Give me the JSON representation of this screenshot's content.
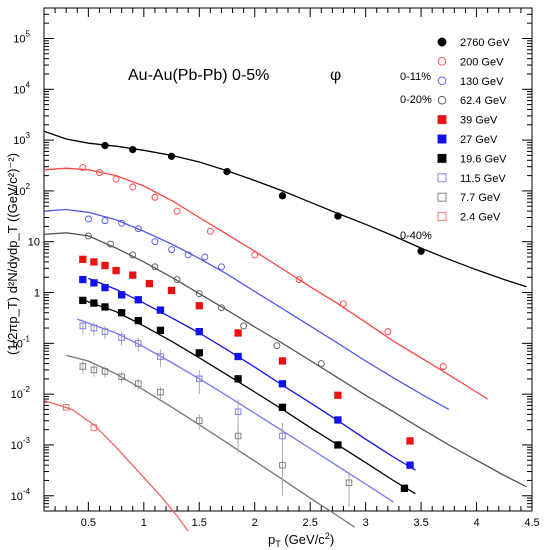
{
  "chart_data": {
    "type": "scatter",
    "title": "Au-Au(Pb-Pb)  0-5%",
    "particle_symbol": "φ",
    "xlabel": "p",
    "xlabel_sub": "T",
    "xlabel_units": " (GeV/c",
    "xlabel_sup": "2",
    "xlabel_close": ")",
    "ylabel": "(1/2πp_T) d²N/dydp_T ((GeV/c²)⁻²)",
    "xlim": [
      0.1,
      4.5
    ],
    "ylim_log10": [
      -4.3,
      5.6
    ],
    "yscale": "log",
    "x_ticks": [
      0.5,
      1,
      1.5,
      2,
      2.5,
      3,
      3.5,
      4,
      4.5
    ],
    "x_tick_labels": [
      "0.5",
      "1",
      "1.5",
      "2",
      "2.5",
      "3",
      "3.5",
      "4",
      "4.5"
    ],
    "y_tick_exponents": [
      -4,
      -3,
      -2,
      -1,
      0,
      1,
      2,
      3,
      4,
      5
    ],
    "y_tick_labels": [
      {
        "base": "10",
        "exp": "-4"
      },
      {
        "base": "10",
        "exp": "-3"
      },
      {
        "base": "10",
        "exp": "-2"
      },
      {
        "base": "10",
        "exp": "-1"
      },
      {
        "base": "1",
        "exp": ""
      },
      {
        "base": "10",
        "exp": ""
      },
      {
        "base": "10",
        "exp": "2"
      },
      {
        "base": "10",
        "exp": "3"
      },
      {
        "base": "10",
        "exp": "4"
      },
      {
        "base": "10",
        "exp": "5"
      }
    ],
    "centrality_notes": [
      {
        "text": "0-11%",
        "series": "130 GeV"
      },
      {
        "text": "0-20%",
        "series": "62.4 GeV"
      },
      {
        "text": "0-40%",
        "series": "2.4 GeV"
      }
    ],
    "series": [
      {
        "name": "2760 GeV",
        "color": "#000000",
        "marker": "circle",
        "filled": true,
        "x": [
          0.65,
          0.9,
          1.25,
          1.75,
          2.25,
          2.75,
          3.5
        ],
        "y": [
          780,
          650,
          480,
          240,
          80,
          32,
          6.5
        ],
        "err": [],
        "curve": {
          "x": [
            0.1,
            0.3,
            0.5,
            0.75,
            1.0,
            1.25,
            1.5,
            1.75,
            2.0,
            2.25,
            2.5,
            2.75,
            3.0,
            3.25,
            3.5,
            3.75,
            4.0,
            4.25,
            4.45
          ],
          "y": [
            1500,
            1050,
            870,
            760,
            630,
            500,
            370,
            250,
            160,
            100,
            60,
            36,
            22,
            13,
            7.5,
            4.5,
            2.8,
            1.8,
            1.3
          ]
        }
      },
      {
        "name": "200 GeV",
        "color": "#ff4444",
        "marker": "circle",
        "filled": false,
        "x": [
          0.45,
          0.6,
          0.75,
          0.9,
          1.1,
          1.3,
          1.6,
          2.0,
          2.4,
          2.8,
          3.2,
          3.7
        ],
        "y": [
          290,
          230,
          170,
          120,
          75,
          40,
          16,
          5.5,
          1.8,
          0.6,
          0.17,
          0.035
        ],
        "err": [],
        "curve": {
          "x": [
            0.1,
            0.3,
            0.5,
            0.75,
            1.0,
            1.25,
            1.5,
            1.75,
            2.0,
            2.25,
            2.5,
            2.75,
            3.0,
            3.25,
            3.5,
            3.75,
            4.0,
            4.1
          ],
          "y": [
            260,
            280,
            260,
            200,
            125,
            65,
            30,
            14,
            6.5,
            2.9,
            1.3,
            0.6,
            0.26,
            0.11,
            0.052,
            0.024,
            0.011,
            0.008
          ]
        }
      },
      {
        "name": "130 GeV",
        "color": "#5555ee",
        "marker": "circle",
        "filled": false,
        "x": [
          0.5,
          0.65,
          0.8,
          0.95,
          1.1,
          1.25,
          1.4,
          1.55,
          1.7
        ],
        "y": [
          28,
          26,
          23,
          18,
          10,
          7,
          5.5,
          5,
          3.2
        ],
        "err": [],
        "curve": {
          "x": [
            0.1,
            0.3,
            0.5,
            0.75,
            1.0,
            1.25,
            1.5,
            1.75,
            2.0,
            2.25,
            2.5,
            2.75,
            3.0,
            3.25,
            3.5,
            3.75
          ],
          "y": [
            40,
            43,
            38,
            27,
            16,
            9,
            4.7,
            2.3,
            1.05,
            0.48,
            0.22,
            0.1,
            0.045,
            0.021,
            0.01,
            0.005
          ]
        }
      },
      {
        "name": "62.4 GeV",
        "color": "#555555",
        "marker": "circle",
        "filled": false,
        "x": [
          0.5,
          0.7,
          0.9,
          1.1,
          1.3,
          1.5,
          1.7,
          1.9,
          2.2,
          2.6
        ],
        "y": [
          13,
          9,
          5.5,
          3.2,
          1.8,
          0.95,
          0.5,
          0.22,
          0.09,
          0.04
        ],
        "err": [],
        "curve": {
          "x": [
            0.1,
            0.3,
            0.5,
            0.75,
            1.0,
            1.25,
            1.5,
            1.75,
            2.0,
            2.25,
            2.5,
            2.75,
            3.0,
            3.25,
            3.5,
            3.75,
            4.0,
            4.25,
            4.45
          ],
          "y": [
            14,
            15,
            13,
            7.5,
            4,
            2,
            0.95,
            0.45,
            0.21,
            0.1,
            0.046,
            0.021,
            0.0095,
            0.0045,
            0.0021,
            0.001,
            0.0005,
            0.00025,
            0.00015
          ]
        }
      },
      {
        "name": "39 GeV",
        "color": "#ee1111",
        "marker": "square",
        "filled": true,
        "x": [
          0.45,
          0.55,
          0.65,
          0.75,
          0.9,
          1.05,
          1.25,
          1.5,
          1.85,
          2.25,
          2.75,
          3.4
        ],
        "y": [
          4.5,
          4,
          3.4,
          2.7,
          2.2,
          1.5,
          1.1,
          0.55,
          0.16,
          0.045,
          0.0095,
          0.0012
        ],
        "err": [],
        "curve": null
      },
      {
        "name": "27 GeV",
        "color": "#1111ee",
        "marker": "square",
        "filled": true,
        "x": [
          0.45,
          0.55,
          0.65,
          0.8,
          0.95,
          1.15,
          1.5,
          1.85,
          2.25,
          2.75,
          3.4
        ],
        "y": [
          1.8,
          1.55,
          1.25,
          0.9,
          0.72,
          0.45,
          0.17,
          0.055,
          0.016,
          0.0031,
          0.0004
        ],
        "err": [],
        "curve": {
          "x": [
            0.5,
            0.75,
            1.0,
            1.25,
            1.5,
            1.75,
            2.0,
            2.25,
            2.5,
            2.75,
            3.0,
            3.25,
            3.45
          ],
          "y": [
            1.9,
            1.15,
            0.62,
            0.32,
            0.16,
            0.075,
            0.034,
            0.015,
            0.0068,
            0.003,
            0.0013,
            0.00058,
            0.00032
          ]
        }
      },
      {
        "name": "19.6 GeV",
        "color": "#000000",
        "marker": "square",
        "filled": true,
        "x": [
          0.45,
          0.55,
          0.65,
          0.8,
          0.95,
          1.15,
          1.5,
          1.85,
          2.25,
          2.75,
          3.35
        ],
        "y": [
          0.7,
          0.62,
          0.52,
          0.4,
          0.28,
          0.18,
          0.065,
          0.02,
          0.0055,
          0.001,
          0.00014
        ],
        "err": [],
        "curve": {
          "x": [
            0.45,
            0.75,
            1.0,
            1.25,
            1.5,
            1.75,
            2.0,
            2.25,
            2.5,
            2.75,
            3.0,
            3.25,
            3.45
          ],
          "y": [
            0.72,
            0.42,
            0.22,
            0.11,
            0.052,
            0.024,
            0.011,
            0.005,
            0.0022,
            0.001,
            0.00045,
            0.0002,
            0.00011
          ]
        }
      },
      {
        "name": "11.5 GeV",
        "color": "#7777ee",
        "marker": "square",
        "filled": false,
        "x": [
          0.45,
          0.55,
          0.65,
          0.8,
          0.95,
          1.15,
          1.5,
          1.85,
          2.25
        ],
        "y": [
          0.22,
          0.2,
          0.17,
          0.13,
          0.1,
          0.055,
          0.02,
          0.0045,
          0.0015
        ],
        "err": [
          0.07,
          0.06,
          0.05,
          0.04,
          0.03,
          0.02,
          0.01,
          0.0035,
          0.0012
        ],
        "curve": {
          "x": [
            0.4,
            0.75,
            1.0,
            1.25,
            1.5,
            1.75,
            2.0,
            2.25,
            2.5,
            2.75,
            3.0,
            3.25
          ],
          "y": [
            0.3,
            0.16,
            0.085,
            0.042,
            0.02,
            0.0093,
            0.0042,
            0.0019,
            0.00085,
            0.00038,
            0.00017,
            7.5e-05
          ]
        }
      },
      {
        "name": "7.7 GeV",
        "color": "#777777",
        "marker": "square",
        "filled": false,
        "x": [
          0.45,
          0.55,
          0.65,
          0.8,
          0.95,
          1.15,
          1.5,
          1.85,
          2.25,
          2.85
        ],
        "y": [
          0.035,
          0.03,
          0.028,
          0.022,
          0.016,
          0.011,
          0.003,
          0.0015,
          0.0004,
          0.00018
        ],
        "err": [
          0.01,
          0.008,
          0.007,
          0.005,
          0.004,
          0.003,
          0.001,
          0.0008,
          0.0003,
          0.00012
        ],
        "curve": {
          "x": [
            0.3,
            0.5,
            0.75,
            1.0,
            1.25,
            1.5,
            1.75,
            2.0,
            2.25,
            2.5,
            2.75,
            2.9
          ],
          "y": [
            0.058,
            0.045,
            0.025,
            0.012,
            0.0056,
            0.0025,
            0.0011,
            0.00048,
            0.00021,
            9e-05,
            4e-05,
            2.4e-05
          ]
        }
      },
      {
        "name": "2.4 GeV",
        "color": "#ee6666",
        "marker": "square",
        "filled": false,
        "x": [
          0.3,
          0.55
        ],
        "y": [
          0.0055,
          0.0022
        ],
        "err": [],
        "curve": {
          "x": [
            0.1,
            0.35,
            0.55,
            0.75,
            0.95,
            1.15,
            1.3,
            1.4
          ],
          "y": [
            0.0075,
            0.005,
            0.0025,
            0.0009,
            0.0003,
            0.0001,
            4e-05,
            2e-05
          ]
        }
      }
    ]
  }
}
